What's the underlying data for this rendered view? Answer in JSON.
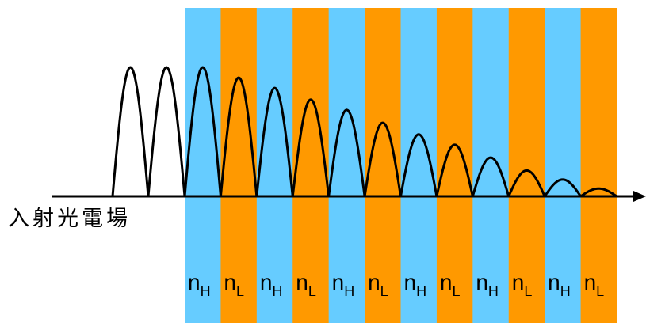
{
  "incident_label": "入射光電場",
  "layer_colors": {
    "n_H": "#66ccff",
    "n_L": "#ff9900"
  },
  "layers": [
    {
      "base": "n",
      "sub": "H",
      "type": "n_H"
    },
    {
      "base": "n",
      "sub": "L",
      "type": "n_L"
    },
    {
      "base": "n",
      "sub": "H",
      "type": "n_H"
    },
    {
      "base": "n",
      "sub": "L",
      "type": "n_L"
    },
    {
      "base": "n",
      "sub": "H",
      "type": "n_H"
    },
    {
      "base": "n",
      "sub": "L",
      "type": "n_L"
    },
    {
      "base": "n",
      "sub": "H",
      "type": "n_H"
    },
    {
      "base": "n",
      "sub": "L",
      "type": "n_L"
    },
    {
      "base": "n",
      "sub": "H",
      "type": "n_H"
    },
    {
      "base": "n",
      "sub": "L",
      "type": "n_L"
    },
    {
      "base": "n",
      "sub": "H",
      "type": "n_H"
    },
    {
      "base": "n",
      "sub": "L",
      "type": "n_L"
    }
  ],
  "field_amplitudes": [
    1.0,
    1.0,
    1.0,
    0.92,
    0.84,
    0.75,
    0.67,
    0.57,
    0.48,
    0.4,
    0.3,
    0.2,
    0.13,
    0.06
  ]
}
